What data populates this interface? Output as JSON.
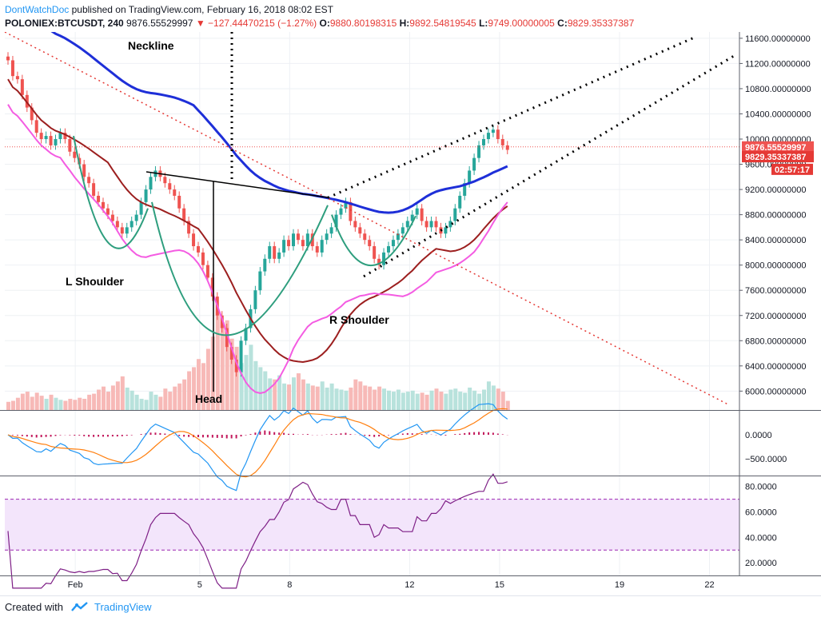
{
  "header": {
    "author": "DontWatchDoc",
    "published_text": "published on TradingView.com, February 16, 2018 08:02 EST",
    "symbol": "POLONIEX:BTCUSDT, 240",
    "last": "9876.55529997",
    "change_arrow": "▼",
    "change": "−127.44470215 (−1.27%)",
    "o_label": "O:",
    "o_value": "9880.80198315",
    "h_label": "H:",
    "h_value": "9892.54819545",
    "l_label": "L:",
    "l_value": "9749.00000005",
    "c_label": "C:",
    "c_value": "9829.35337387"
  },
  "price_tags": {
    "last": "9876.55529997",
    "close": "9829.35337387",
    "countdown": "02:57:17"
  },
  "colors": {
    "up": "#26a69a",
    "down": "#ef5350",
    "ma_blue": "#1e2fd8",
    "ma_darkred": "#9c1f1f",
    "ma_pink": "#f45ce2",
    "macd": "#2196f3",
    "signal": "#ff7f0e",
    "hist": "#c2185b",
    "rsi": "#7e1f86",
    "rsi_band": "#f3e5fb",
    "trendline": "#e53935",
    "annot": "#000000",
    "cuphandle": "#2e9e7e"
  },
  "chart_data": {
    "type": "candlestick",
    "price_axis": {
      "ylim": [
        5700,
        11700
      ],
      "ticks": [
        "11600.00000000",
        "11200.00000000",
        "10800.00000000",
        "10400.00000000",
        "10000.00000000",
        "9600.00000000",
        "9200.00000000",
        "8800.00000000",
        "8400.00000000",
        "8000.00000000",
        "7600.00000000",
        "7200.00000000",
        "6800.00000000",
        "6400.00000000",
        "6000.00000000"
      ],
      "tick_values": [
        11600,
        11200,
        10800,
        10400,
        10000,
        9600,
        9200,
        8800,
        8400,
        8000,
        7600,
        7200,
        6800,
        6400,
        6000
      ]
    },
    "x_axis": {
      "xlim": [
        0,
        24.5
      ],
      "ticks": [
        "Feb",
        "5",
        "8",
        "12",
        "15",
        "19",
        "22"
      ],
      "tick_values": [
        2.35,
        6.5,
        9.5,
        13.5,
        16.5,
        20.5,
        23.5
      ]
    },
    "closes": [
      11250,
      11000,
      10950,
      10700,
      10500,
      10300,
      10100,
      10000,
      10050,
      9900,
      10000,
      10100,
      10000,
      9800,
      9700,
      9600,
      9400,
      9300,
      9100,
      9000,
      8900,
      8800,
      8700,
      8600,
      8500,
      8600,
      8700,
      8800,
      9000,
      9200,
      9400,
      9500,
      9400,
      9300,
      9200,
      9100,
      8900,
      8700,
      8500,
      8300,
      8200,
      8000,
      7800,
      7500,
      7200,
      7000,
      6700,
      6500,
      6300,
      6800,
      7000,
      7300,
      7600,
      7900,
      8100,
      8300,
      8100,
      8200,
      8400,
      8300,
      8500,
      8400,
      8300,
      8500,
      8300,
      8200,
      8400,
      8500,
      8600,
      8800,
      8900,
      9000,
      8700,
      8600,
      8500,
      8400,
      8300,
      8100,
      8000,
      8200,
      8300,
      8400,
      8500,
      8600,
      8700,
      8800,
      8900,
      8700,
      8600,
      8700,
      8600,
      8500,
      8600,
      8700,
      8900,
      9100,
      9300,
      9500,
      9700,
      9900,
      10000,
      10100,
      10150,
      10000,
      9900,
      9829
    ],
    "volumes": [
      80,
      90,
      120,
      160,
      180,
      130,
      170,
      140,
      110,
      150,
      120,
      100,
      90,
      110,
      100,
      120,
      110,
      150,
      160,
      200,
      230,
      180,
      240,
      280,
      330,
      220,
      190,
      150,
      110,
      100,
      180,
      150,
      130,
      210,
      180,
      230,
      260,
      300,
      380,
      420,
      500,
      460,
      600,
      720,
      980,
      860,
      880,
      700,
      620,
      460,
      540,
      640,
      480,
      420,
      380,
      310,
      300,
      340,
      260,
      250,
      320,
      360,
      300,
      260,
      240,
      230,
      280,
      220,
      260,
      210,
      200,
      190,
      220,
      300,
      280,
      240,
      230,
      200,
      230,
      210,
      190,
      180,
      200,
      170,
      180,
      190,
      160,
      170,
      150,
      190,
      210,
      180,
      160,
      200,
      210,
      180,
      170,
      220,
      190,
      160,
      200,
      280,
      240,
      210,
      180,
      90
    ],
    "macd_axis": {
      "ticks": [
        "0.0000",
        "−500.0000"
      ],
      "tick_values": [
        0,
        -500
      ]
    },
    "rsi_axis": {
      "ticks": [
        "80.0000",
        "60.0000",
        "40.0000",
        "20.0000"
      ],
      "tick_values": [
        80,
        60,
        40,
        20
      ],
      "upper": 70,
      "lower": 30
    },
    "annotations": {
      "neckline": "Neckline",
      "left_shoulder": "L Shoulder",
      "right_shoulder": "R Shoulder",
      "head": "Head"
    }
  },
  "footer": {
    "created_with": "Created with",
    "brand": "TradingView"
  }
}
